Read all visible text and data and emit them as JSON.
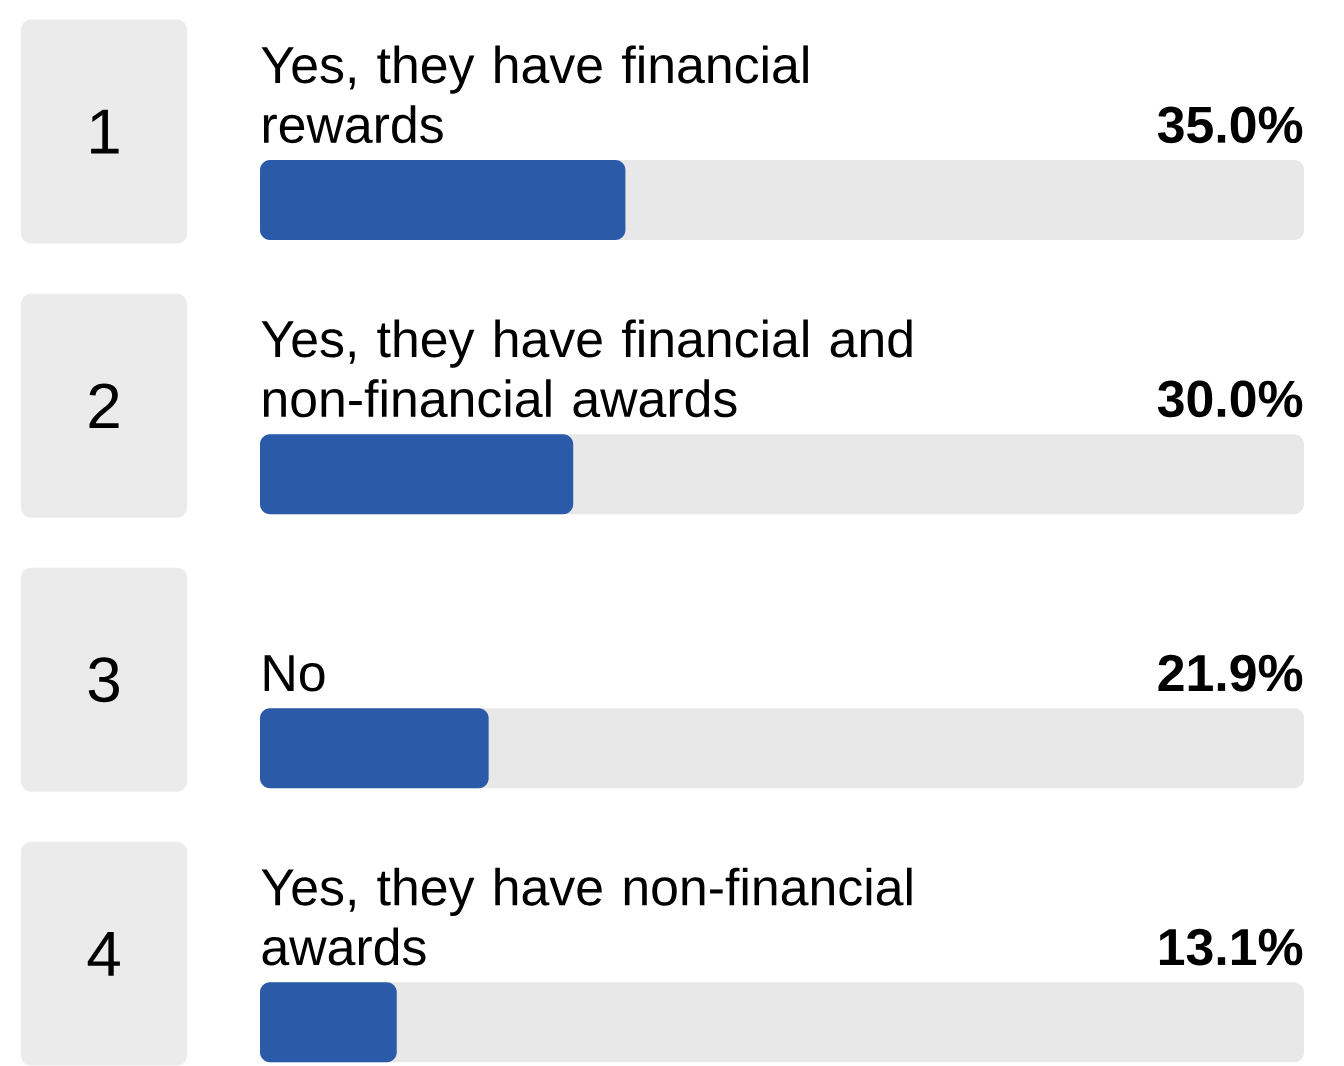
{
  "chart_data": {
    "type": "bar",
    "orientation": "horizontal",
    "categories": [
      "Yes, they have financial rewards",
      "Yes, they have financial and non-financial awards",
      "No",
      "Yes, they have non-financial awards"
    ],
    "values": [
      35.0,
      30.0,
      21.9,
      13.1
    ],
    "value_labels": [
      "35.0%",
      "30.0%",
      "21.9%",
      "13.1%"
    ],
    "color": "#2b5ba8",
    "xlim": [
      0,
      100
    ],
    "tick_labels": false,
    "annotations": [
      "1",
      "2",
      "3",
      "4"
    ]
  }
}
